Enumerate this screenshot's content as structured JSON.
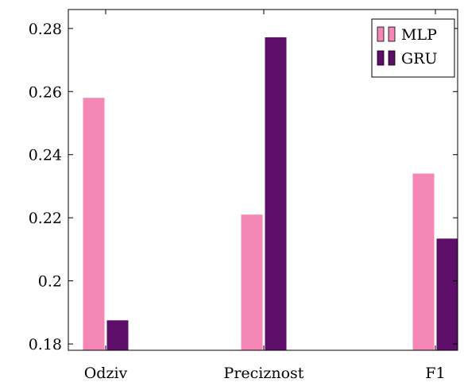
{
  "chart_data": {
    "type": "bar",
    "categories": [
      "Odziv",
      "Preciznost",
      "F1"
    ],
    "series": [
      {
        "name": "MLP",
        "values": [
          0.258,
          0.221,
          0.234
        ],
        "color": "#f487b6"
      },
      {
        "name": "GRU",
        "values": [
          0.1875,
          0.2772,
          0.2134
        ],
        "color": "#5c0e68"
      }
    ],
    "ylim": [
      0.178,
      0.286
    ],
    "yticks": [
      0.18,
      0.2,
      0.22,
      0.24,
      0.26,
      0.28
    ],
    "ytick_labels": [
      "0.18",
      "0.2",
      "0.22",
      "0.24",
      "0.26",
      "0.28"
    ],
    "legend_position": "top-right",
    "grid": false,
    "title": "",
    "xlabel": "",
    "ylabel": ""
  }
}
